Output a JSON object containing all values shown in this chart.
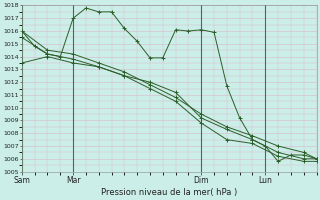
{
  "background_color": "#cceee8",
  "grid_color": "#d8b8c8",
  "line_color": "#2a5f2a",
  "ylabel": "Pression niveau de la mer( hPa )",
  "ylim": [
    1005,
    1018
  ],
  "yticks": [
    1005,
    1006,
    1007,
    1008,
    1009,
    1010,
    1011,
    1012,
    1013,
    1014,
    1015,
    1016,
    1017,
    1018
  ],
  "xtick_labels": [
    "Sam",
    "Mar",
    "Dim",
    "Lun"
  ],
  "xtick_positions": [
    0,
    16,
    56,
    76
  ],
  "total_steps": 92,
  "vline_positions": [
    0,
    16,
    56,
    76
  ],
  "series": [
    {
      "x": [
        0,
        4,
        8,
        12,
        16,
        20,
        24,
        28,
        32,
        36,
        40,
        44,
        48,
        52,
        56,
        60,
        64,
        68,
        72,
        76,
        80,
        84,
        88,
        92
      ],
      "y": [
        1016.0,
        1014.8,
        1014.2,
        1014.0,
        1017.0,
        1017.8,
        1017.5,
        1017.5,
        1016.2,
        1015.2,
        1013.9,
        1013.9,
        1016.1,
        1016.0,
        1016.1,
        1015.9,
        1011.7,
        1009.2,
        1007.5,
        1007.0,
        1005.8,
        1006.3,
        1006.3,
        1006.0
      ]
    },
    {
      "x": [
        0,
        8,
        16,
        24,
        32,
        40,
        48,
        56,
        64,
        72,
        80,
        88,
        92
      ],
      "y": [
        1013.5,
        1014.0,
        1013.5,
        1013.2,
        1012.5,
        1012.0,
        1011.2,
        1009.2,
        1008.3,
        1007.5,
        1006.5,
        1006.0,
        1006.0
      ]
    },
    {
      "x": [
        0,
        8,
        16,
        24,
        32,
        40,
        48,
        56,
        64,
        72,
        80,
        88,
        92
      ],
      "y": [
        1016.0,
        1014.5,
        1014.2,
        1013.5,
        1012.8,
        1011.8,
        1010.8,
        1009.5,
        1008.5,
        1007.8,
        1007.0,
        1006.5,
        1006.0
      ]
    },
    {
      "x": [
        0,
        8,
        16,
        24,
        32,
        40,
        48,
        56,
        64,
        72,
        80,
        88,
        92
      ],
      "y": [
        1015.5,
        1014.2,
        1013.8,
        1013.2,
        1012.5,
        1011.5,
        1010.5,
        1008.8,
        1007.5,
        1007.2,
        1006.2,
        1005.8,
        1005.8
      ]
    }
  ]
}
